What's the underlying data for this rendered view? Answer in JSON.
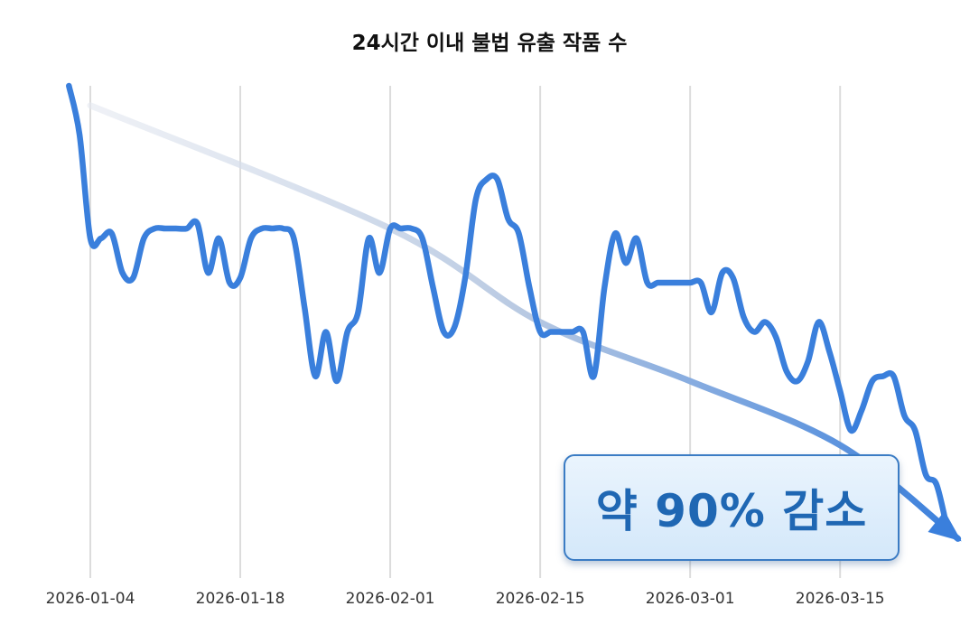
{
  "chart_data": {
    "type": "line",
    "title": "24시간 이내 불법 유출 작품 수",
    "xlabel": "",
    "ylabel": "",
    "x_ticks": [
      "2026-01-04",
      "2026-01-18",
      "2026-02-01",
      "2026-02-15",
      "2026-03-01",
      "2026-03-15"
    ],
    "xlim": [
      "2026-01-02",
      "2026-03-27"
    ],
    "ylim": [
      0,
      100
    ],
    "y_axis_shown": false,
    "grid": "vertical",
    "line_color": "#3a7fdc",
    "series": [
      {
        "start_date": "2026-01-02",
        "interval": "daily",
        "values": [
          100,
          90,
          69,
          69,
          70,
          62,
          61,
          69,
          71,
          71,
          71,
          71,
          72,
          62,
          69,
          60,
          61,
          69,
          71,
          71,
          71,
          69,
          55,
          41,
          50,
          40,
          50,
          54,
          69,
          62,
          71,
          71,
          71,
          69,
          59,
          50,
          51,
          61,
          77,
          81,
          81,
          73,
          70,
          59,
          50,
          50,
          50,
          50,
          50,
          41,
          59,
          70,
          64,
          69,
          60,
          60,
          60,
          60,
          60,
          60,
          54,
          62,
          61,
          53,
          50,
          52,
          49,
          42,
          40,
          44,
          52,
          46,
          38,
          30,
          34,
          40,
          41,
          41,
          33,
          30,
          21,
          19,
          10
        ]
      }
    ],
    "trend_arrow": {
      "color": "#3a7fdc",
      "points": [
        [
          "2026-01-04",
          96
        ],
        [
          "2026-02-01",
          71
        ],
        [
          "2026-02-15",
          52
        ],
        [
          "2026-03-01",
          40
        ],
        [
          "2026-03-15",
          27
        ],
        [
          "2026-03-26",
          8
        ]
      ]
    },
    "annotation": {
      "text": "약 90% 감소",
      "color": "#1f67b3"
    }
  }
}
